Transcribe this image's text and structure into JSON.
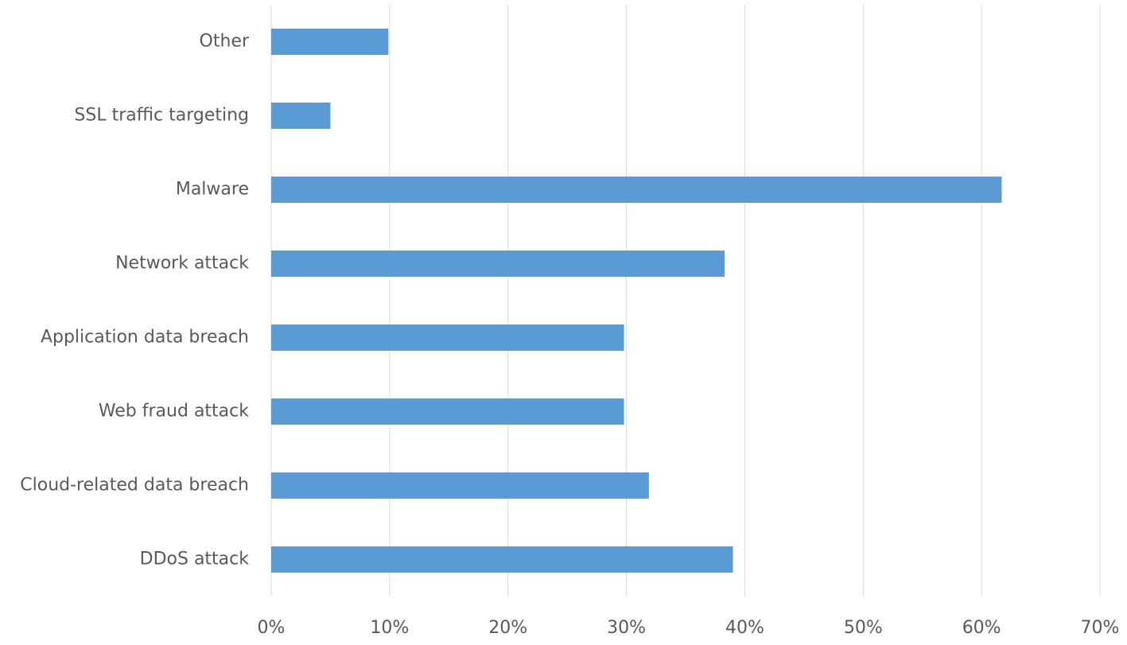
{
  "chart_data": {
    "type": "bar",
    "orientation": "horizontal",
    "categories": [
      "Other",
      "SSL traffic targeting",
      "Malware",
      "Network attack",
      "Application data breach",
      "Web fraud attack",
      "Cloud-related data breach",
      "DDoS attack"
    ],
    "values": [
      9.9,
      5,
      61.7,
      38.3,
      29.8,
      29.8,
      31.9,
      39.0
    ],
    "color": "#5b9bd5",
    "xlim": [
      0,
      70
    ],
    "xticks": [
      {
        "value": 0,
        "label": "0%"
      },
      {
        "value": 10,
        "label": "10%"
      },
      {
        "value": 20,
        "label": "20%"
      },
      {
        "value": 30,
        "label": "30%"
      },
      {
        "value": 40,
        "label": "40%"
      },
      {
        "value": 50,
        "label": "50%"
      },
      {
        "value": 60,
        "label": "60%"
      },
      {
        "value": 70,
        "label": "70%"
      }
    ],
    "grid": true
  }
}
